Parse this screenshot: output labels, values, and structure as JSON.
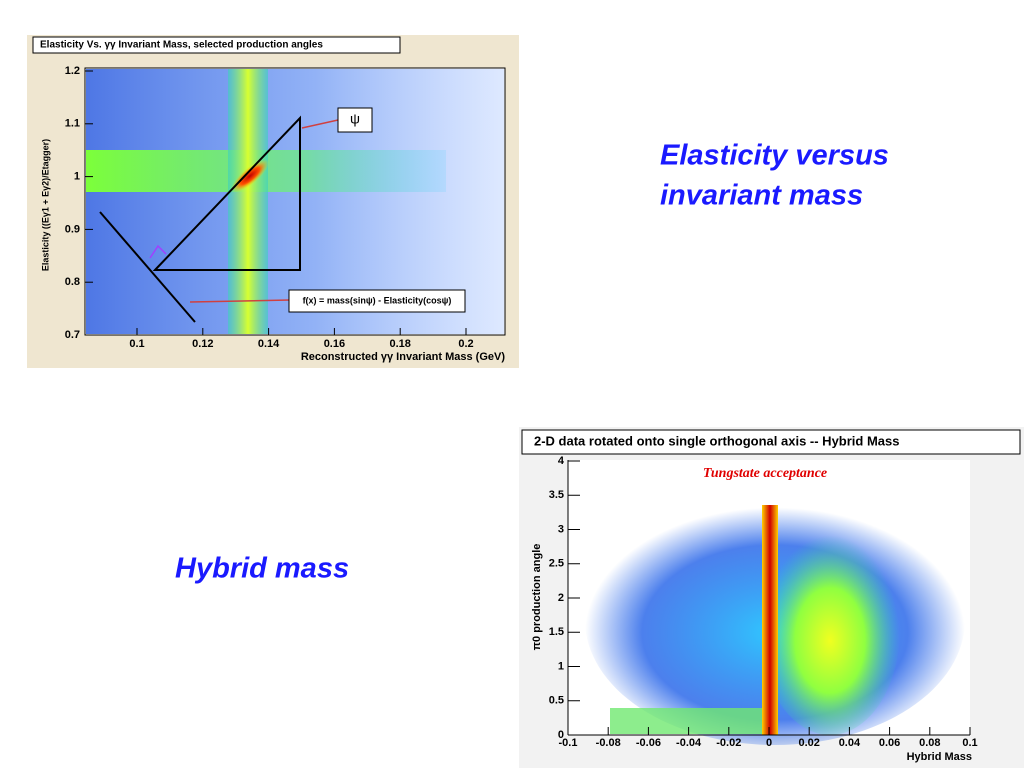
{
  "slide": {
    "caption_top": [
      "Elasticity versus",
      "invariant mass"
    ],
    "caption_bottom": "Hybrid mass"
  },
  "plot_top": {
    "title": "Elasticity Vs. γγ Invariant Mass, selected production angles",
    "x_label": "Reconstructed γγ Invariant Mass (GeV)",
    "y_label": "Elasticity ((Eγ1 + Eγ2)/Etagger)",
    "x_ticks": [
      "0.1",
      "0.12",
      "0.14",
      "0.16",
      "0.18",
      "0.2"
    ],
    "y_ticks": [
      "0.7",
      "0.8",
      "0.9",
      "1",
      "1.1",
      "1.2"
    ],
    "annotation_angle": "ψ",
    "annotation_formula": "f(x) = mass(sinψ) - Elasticity(cosψ)"
  },
  "plot_bottom": {
    "title": "2-D data rotated onto single orthogonal axis -- Hybrid Mass",
    "subtitle": "Tungstate acceptance",
    "x_label": "Hybrid Mass",
    "y_label": "π0 production angle",
    "x_ticks": [
      "-0.1",
      "-0.08",
      "-0.06",
      "-0.04",
      "-0.02",
      "0",
      "0.02",
      "0.04",
      "0.06",
      "0.08",
      "0.1"
    ],
    "y_ticks": [
      "0",
      "0.5",
      "1",
      "1.5",
      "2",
      "2.5",
      "3",
      "3.5",
      "4"
    ]
  }
}
